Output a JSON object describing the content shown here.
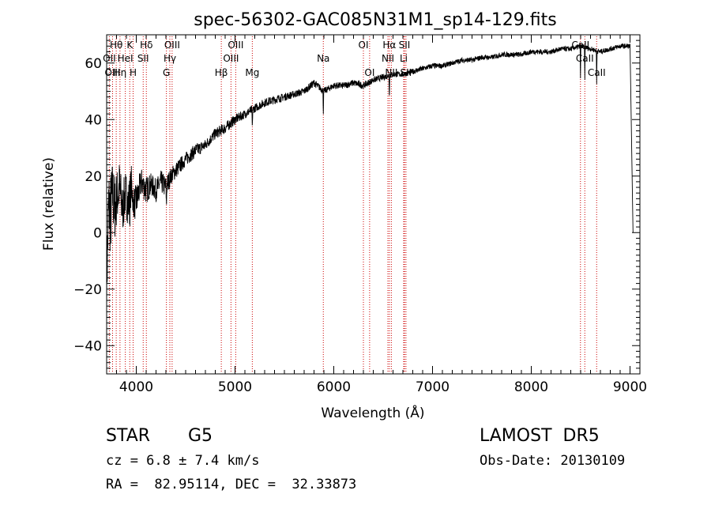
{
  "chart_data": {
    "type": "line",
    "title": "spec-56302-GAC085N31M1_sp14-129.fits",
    "xlabel": "Wavelength (Å)",
    "ylabel": "Flux (relative)",
    "xlim": [
      3700,
      9100
    ],
    "ylim": [
      -50,
      70
    ],
    "x_ticks": [
      4000,
      5000,
      6000,
      7000,
      8000,
      9000
    ],
    "y_ticks": [
      -40,
      -20,
      0,
      20,
      40,
      60
    ],
    "grid": false,
    "legend": "none",
    "line_color": "#000000",
    "marker_color": "#cc0000",
    "series": [
      {
        "x": [
          3700,
          3720,
          3740,
          3760,
          3780,
          3800,
          3830,
          3860,
          3890,
          3920,
          3950,
          3980,
          4010,
          4050,
          4100,
          4150,
          4200,
          4250,
          4300,
          4350,
          4400,
          4500,
          4600,
          4700,
          4800,
          4900,
          5000,
          5100,
          5200,
          5300,
          5400,
          5500,
          5600,
          5700,
          5800,
          5900,
          6000,
          6100,
          6200,
          6300,
          6400,
          6500,
          6600,
          6700,
          6800,
          6900,
          7000,
          7100,
          7200,
          7300,
          7400,
          7500,
          7600,
          7700,
          7800,
          7900,
          8000,
          8100,
          8200,
          8300,
          8400,
          8500,
          8600,
          8700,
          8800,
          8900,
          9000,
          9030
        ],
        "y": [
          -18,
          10,
          6,
          14,
          8,
          12,
          16,
          8,
          14,
          10,
          17,
          10,
          12,
          18,
          15,
          17,
          15,
          18,
          16,
          20,
          22,
          26,
          29,
          31,
          35,
          37,
          40,
          42,
          44,
          46,
          47,
          48,
          49,
          50,
          53,
          50,
          52,
          52,
          53,
          52,
          54,
          55,
          56,
          56,
          57,
          58,
          59,
          59,
          60,
          61,
          61,
          62,
          62,
          63,
          63,
          63,
          64,
          64,
          64,
          65,
          65,
          66,
          65,
          64,
          65,
          66,
          66,
          0
        ],
        "noise": [
          12,
          14,
          16,
          12,
          12,
          10,
          10,
          9,
          8,
          8,
          7,
          6,
          6,
          5,
          5,
          4,
          4,
          4,
          4,
          3,
          3,
          2.5,
          2.5,
          2,
          2,
          2,
          1.8,
          1.6,
          1.5,
          1.5,
          1.5,
          1.4,
          1.3,
          1.3,
          1.3,
          1.2,
          1.2,
          1.2,
          1.2,
          1.2,
          1.1,
          1.1,
          1.1,
          1,
          1,
          1,
          1,
          0.9,
          0.9,
          0.9,
          0.9,
          0.9,
          0.9,
          0.9,
          0.9,
          0.9,
          0.9,
          0.9,
          0.9,
          0.9,
          0.9,
          0.9,
          0.9,
          0.9,
          0.9,
          0.9,
          0.9,
          0
        ]
      }
    ],
    "lines": [
      {
        "label": "Hθ",
        "x": 3797,
        "row": 0
      },
      {
        "label": "OII",
        "x": 3727,
        "row": 1
      },
      {
        "label": "OIII",
        "x": 3760,
        "row": 2
      },
      {
        "label": "K",
        "x": 3934,
        "row": 0
      },
      {
        "label": "HeI",
        "x": 3889,
        "row": 1
      },
      {
        "label": "Hη",
        "x": 3835,
        "row": 2
      },
      {
        "label": "H",
        "x": 3968,
        "row": 2
      },
      {
        "label": "Hδ",
        "x": 4102,
        "row": 0
      },
      {
        "label": "SII",
        "x": 4070,
        "row": 1
      },
      {
        "label": "OIII",
        "x": 4363,
        "row": 0
      },
      {
        "label": "Hγ",
        "x": 4340,
        "row": 1
      },
      {
        "label": "G",
        "x": 4305,
        "row": 2
      },
      {
        "label": "OIII",
        "x": 5007,
        "row": 0
      },
      {
        "label": "OIII",
        "x": 4959,
        "row": 1
      },
      {
        "label": "Hβ",
        "x": 4861,
        "row": 2
      },
      {
        "label": "Mg",
        "x": 5175,
        "row": 2
      },
      {
        "label": "Na",
        "x": 5894,
        "row": 1
      },
      {
        "label": "OI",
        "x": 6300,
        "row": 0
      },
      {
        "label": "OI",
        "x": 6363,
        "row": 2
      },
      {
        "label": "Hα",
        "x": 6563,
        "row": 0
      },
      {
        "label": "SII",
        "x": 6716,
        "row": 0
      },
      {
        "label": "NII",
        "x": 6548,
        "row": 1
      },
      {
        "label": "Li",
        "x": 6708,
        "row": 1
      },
      {
        "label": "NII",
        "x": 6583,
        "row": 2
      },
      {
        "label": "SII",
        "x": 6731,
        "row": 2
      },
      {
        "label": "CaII",
        "x": 8498,
        "row": 0
      },
      {
        "label": "CaII",
        "x": 8542,
        "row": 1
      },
      {
        "label": "CaII",
        "x": 8662,
        "row": 2
      }
    ]
  },
  "info": {
    "class": "STAR",
    "subclass": "G5",
    "survey": "LAMOST  DR5",
    "cz": "cz = 6.8 ± 7.4 km/s",
    "obs_date": "Obs-Date: 20130109",
    "ra_dec": "RA =  82.95114, DEC =  32.33873"
  }
}
